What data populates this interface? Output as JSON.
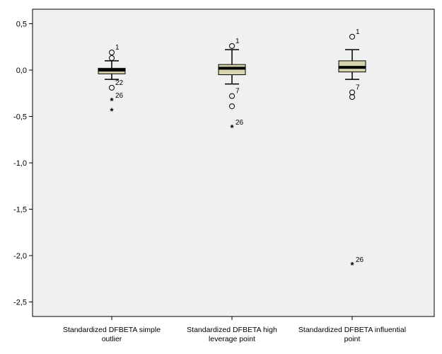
{
  "chart_data": {
    "type": "boxplot",
    "title": "",
    "xlabel": "",
    "ylabel": "",
    "ylim": [
      -2.75,
      0.6
    ],
    "y_ticks": [
      0.5,
      0.0,
      -0.5,
      -1.0,
      -1.5,
      -2.0,
      -2.5
    ],
    "y_tick_labels": [
      "0,5",
      "0,0",
      "-0,5",
      "-1,0",
      "-1,5",
      "-2,0",
      "-2,5"
    ],
    "grid": false,
    "box_fill": "#d8d4b0",
    "plot_background": "#f0f0f0",
    "categories": [
      {
        "label_lines": [
          "Standardized DFBETA simple",
          "outlier"
        ],
        "whisker_low": -0.1,
        "q1": -0.04,
        "median": 0.0,
        "q3": 0.02,
        "whisker_high": 0.1,
        "outliers": [
          {
            "value": 0.19,
            "marker": "circle",
            "label": "1"
          },
          {
            "value": 0.13,
            "marker": "circle",
            "label": ""
          },
          {
            "value": -0.19,
            "marker": "circle",
            "label": "22"
          },
          {
            "value": -0.33,
            "marker": "star",
            "label": "26"
          },
          {
            "value": -0.44,
            "marker": "star",
            "label": ""
          }
        ]
      },
      {
        "label_lines": [
          "Standardized DFBETA high",
          "leverage point"
        ],
        "whisker_low": -0.15,
        "q1": -0.05,
        "median": 0.02,
        "q3": 0.06,
        "whisker_high": 0.22,
        "outliers": [
          {
            "value": 0.26,
            "marker": "circle",
            "label": "1"
          },
          {
            "value": -0.28,
            "marker": "circle",
            "label": "7"
          },
          {
            "value": -0.39,
            "marker": "circle",
            "label": ""
          },
          {
            "value": -0.62,
            "marker": "star",
            "label": "26"
          }
        ]
      },
      {
        "label_lines": [
          "Standardized DFBETA influential",
          "point"
        ],
        "whisker_low": -0.1,
        "q1": -0.02,
        "median": 0.03,
        "q3": 0.1,
        "whisker_high": 0.22,
        "outliers": [
          {
            "value": 0.36,
            "marker": "circle",
            "label": "1"
          },
          {
            "value": -0.24,
            "marker": "circle",
            "label": "7"
          },
          {
            "value": -0.29,
            "marker": "circle",
            "label": ""
          },
          {
            "value": -2.1,
            "marker": "star",
            "label": "26"
          }
        ]
      }
    ]
  }
}
